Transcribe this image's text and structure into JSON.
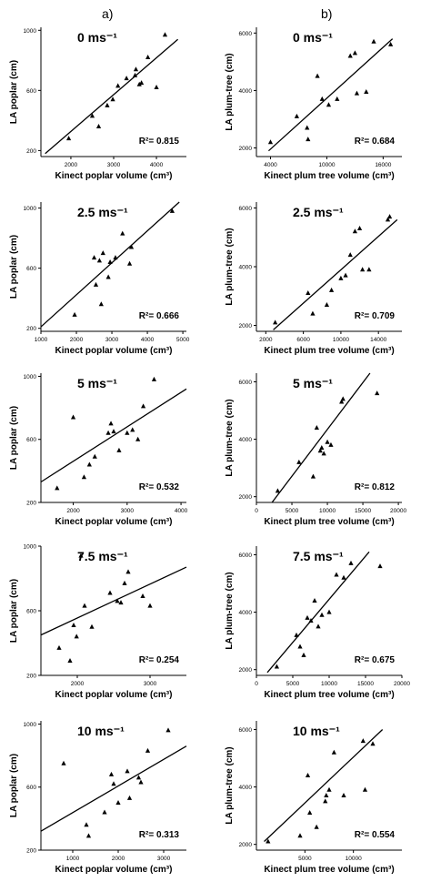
{
  "columns": [
    {
      "label": "a)",
      "xlabel": "Kinect poplar volume (cm³)",
      "ylabel": "LA poplar (cm)"
    },
    {
      "label": "b)",
      "xlabel": "Kinect plum tree volume (cm³)",
      "ylabel": "LA plum-tree (cm)"
    }
  ],
  "chart_data": [
    {
      "type": "scatter",
      "title": "0 ms⁻¹",
      "xlabel": "Kinect poplar volume (cm³)",
      "ylabel": "LA poplar (cm)",
      "xlim": [
        1300,
        4700
      ],
      "ylim": [
        160,
        1020
      ],
      "xticks": [
        2000,
        3000,
        4000
      ],
      "yticks": [
        200,
        600,
        1000
      ],
      "annotation": "R²= 0.815",
      "x": [
        1950,
        2500,
        2650,
        2850,
        2980,
        3100,
        3300,
        3500,
        3520,
        3600,
        3650,
        3800,
        4000,
        4200
      ],
      "y": [
        280,
        430,
        360,
        500,
        540,
        630,
        680,
        700,
        740,
        640,
        650,
        820,
        620,
        970
      ],
      "fit": [
        [
          1400,
          180
        ],
        [
          4500,
          940
        ]
      ]
    },
    {
      "type": "scatter",
      "title": "0 ms⁻¹",
      "xlabel": "Kinect plum tree volume (cm³)",
      "ylabel": "LA plum-tree (cm)",
      "xlim": [
        2500,
        18000
      ],
      "ylim": [
        1700,
        6200
      ],
      "xticks": [
        4000,
        10000,
        16000
      ],
      "yticks": [
        2000,
        4000,
        6000
      ],
      "annotation": "R²= 0.684",
      "x": [
        4000,
        6800,
        7900,
        8000,
        9000,
        9500,
        10200,
        11100,
        12500,
        13000,
        13200,
        14200,
        15000,
        16800
      ],
      "y": [
        2200,
        3100,
        2700,
        2300,
        4500,
        3700,
        3500,
        3700,
        5200,
        5300,
        3900,
        3950,
        5700,
        5600
      ],
      "fit": [
        [
          3800,
          1900
        ],
        [
          17000,
          5800
        ]
      ]
    },
    {
      "type": "scatter",
      "title": "2.5 ms⁻¹",
      "xlabel": "Kinect poplar volume (cm³)",
      "ylabel": "LA poplar (cm)",
      "xlim": [
        1000,
        5100
      ],
      "ylim": [
        180,
        1040
      ],
      "xticks": [
        1000,
        2000,
        3000,
        4000,
        5000
      ],
      "yticks": [
        200,
        600,
        1000
      ],
      "annotation": "R²= 0.666",
      "x": [
        1950,
        2500,
        2550,
        2650,
        2700,
        2750,
        2900,
        2950,
        3100,
        3300,
        3500,
        3550,
        4700
      ],
      "y": [
        290,
        670,
        490,
        650,
        360,
        700,
        540,
        640,
        670,
        830,
        630,
        740,
        980
      ],
      "fit": [
        [
          1000,
          210
        ],
        [
          4900,
          1040
        ]
      ]
    },
    {
      "type": "scatter",
      "title": "2.5 ms⁻¹",
      "xlabel": "Kinect plum tree volume (cm³)",
      "ylabel": "LA plum-tree (cm)",
      "xlim": [
        1000,
        16500
      ],
      "ylim": [
        1800,
        6200
      ],
      "xticks": [
        2000,
        6000,
        10000,
        14000
      ],
      "yticks": [
        2000,
        4000,
        6000
      ],
      "annotation": "R²= 0.709",
      "x": [
        3000,
        6500,
        7000,
        8500,
        9000,
        10000,
        10500,
        11000,
        11500,
        12000,
        12300,
        13000,
        15000,
        15200
      ],
      "y": [
        2100,
        3100,
        2400,
        2700,
        3200,
        3600,
        3700,
        4400,
        5200,
        5300,
        3900,
        3900,
        5600,
        5700
      ],
      "fit": [
        [
          2800,
          1850
        ],
        [
          16000,
          5600
        ]
      ]
    },
    {
      "type": "scatter",
      "title": "5 ms⁻¹",
      "xlabel": "Kinect poplar volume (cm³)",
      "ylabel": "LA poplar (cm)",
      "xlim": [
        1400,
        4100
      ],
      "ylim": [
        200,
        1020
      ],
      "xticks": [
        2000,
        3000,
        4000
      ],
      "yticks": [
        200,
        600,
        1000
      ],
      "annotation": "R²= 0.532",
      "x": [
        1700,
        2000,
        2200,
        2300,
        2400,
        2650,
        2700,
        2750,
        2850,
        3000,
        3100,
        3200,
        3300,
        3500
      ],
      "y": [
        290,
        740,
        360,
        440,
        490,
        640,
        700,
        650,
        530,
        640,
        660,
        600,
        810,
        980
      ],
      "fit": [
        [
          1400,
          330
        ],
        [
          4100,
          920
        ]
      ]
    },
    {
      "type": "scatter",
      "title": "5 ms⁻¹",
      "xlabel": "Kinect plum tree volume (cm³)",
      "ylabel": "LA plum-tree (cm)",
      "xlim": [
        0,
        20500
      ],
      "ylim": [
        1800,
        6300
      ],
      "xticks": [
        0,
        5000,
        10000,
        15000,
        20000
      ],
      "yticks": [
        2000,
        4000,
        6000
      ],
      "annotation": "R²= 0.812",
      "x": [
        3000,
        6000,
        8000,
        8500,
        9000,
        9200,
        9500,
        10000,
        10500,
        12000,
        12200,
        17000
      ],
      "y": [
        2200,
        3200,
        2700,
        4400,
        3600,
        3700,
        3500,
        3900,
        3800,
        5300,
        5400,
        5600
      ],
      "fit": [
        [
          2200,
          1800
        ],
        [
          16000,
          6300
        ]
      ]
    },
    {
      "type": "scatter",
      "title": "7.5 ms⁻¹",
      "xlabel": "Kinect poplar volume (cm³)",
      "ylabel": "LA poplar (cm)",
      "xlim": [
        1500,
        3500
      ],
      "ylim": [
        200,
        1000
      ],
      "xticks": [
        2000,
        3000
      ],
      "yticks": [
        200,
        600,
        1000
      ],
      "annotation": "R²= 0.254",
      "x": [
        1750,
        1900,
        1950,
        1990,
        2050,
        2100,
        2200,
        2450,
        2550,
        2600,
        2650,
        2700,
        2900,
        3000
      ],
      "y": [
        370,
        290,
        510,
        440,
        940,
        630,
        500,
        710,
        660,
        650,
        770,
        840,
        690,
        630
      ],
      "fit": [
        [
          1500,
          450
        ],
        [
          3500,
          870
        ]
      ]
    },
    {
      "type": "scatter",
      "title": "7.5 ms⁻¹",
      "xlabel": "Kinect plum tree volume (cm³)",
      "ylabel": "LA plum-tree (cm)",
      "xlim": [
        0,
        20000
      ],
      "ylim": [
        1800,
        6300
      ],
      "xticks": [
        0,
        5000,
        10000,
        15000,
        20000
      ],
      "yticks": [
        2000,
        4000,
        6000
      ],
      "annotation": "R²= 0.675",
      "x": [
        2800,
        5500,
        6000,
        6500,
        7000,
        7500,
        8000,
        8500,
        9000,
        10000,
        11000,
        12000,
        13000,
        17000
      ],
      "y": [
        2100,
        3200,
        2800,
        2500,
        3800,
        3700,
        4400,
        3500,
        3900,
        4000,
        5300,
        5200,
        5700,
        5600
      ],
      "fit": [
        [
          1500,
          1900
        ],
        [
          15500,
          6100
        ]
      ]
    },
    {
      "type": "scatter",
      "title": "10 ms⁻¹",
      "xlabel": "Kinect poplar volume (cm³)",
      "ylabel": "LA poplar (cm)",
      "xlim": [
        300,
        3500
      ],
      "ylim": [
        200,
        1020
      ],
      "xticks": [
        1000,
        2000,
        3000
      ],
      "yticks": [
        200,
        600,
        1000
      ],
      "annotation": "R²= 0.313",
      "x": [
        800,
        1300,
        1350,
        1700,
        1850,
        1900,
        2000,
        2200,
        2250,
        2450,
        2500,
        2650,
        3100
      ],
      "y": [
        750,
        360,
        290,
        440,
        680,
        620,
        500,
        700,
        530,
        660,
        630,
        830,
        960
      ],
      "fit": [
        [
          300,
          320
        ],
        [
          3500,
          860
        ]
      ]
    },
    {
      "type": "scatter",
      "title": "10 ms⁻¹",
      "xlabel": "Kinect plum tree volume (cm³)",
      "ylabel": "LA plum-tree (cm)",
      "xlim": [
        0,
        15000
      ],
      "ylim": [
        1800,
        6300
      ],
      "xticks": [
        5000,
        10000
      ],
      "yticks": [
        2000,
        4000,
        6000
      ],
      "annotation": "R²= 0.554",
      "x": [
        1200,
        4500,
        5300,
        5500,
        6200,
        7100,
        7200,
        7500,
        8000,
        9000,
        11000,
        11200,
        12000
      ],
      "y": [
        2100,
        2300,
        4400,
        3100,
        2600,
        3500,
        3700,
        3900,
        5200,
        3700,
        5600,
        3900,
        5500
      ],
      "fit": [
        [
          800,
          2100
        ],
        [
          13000,
          6000
        ]
      ]
    }
  ]
}
